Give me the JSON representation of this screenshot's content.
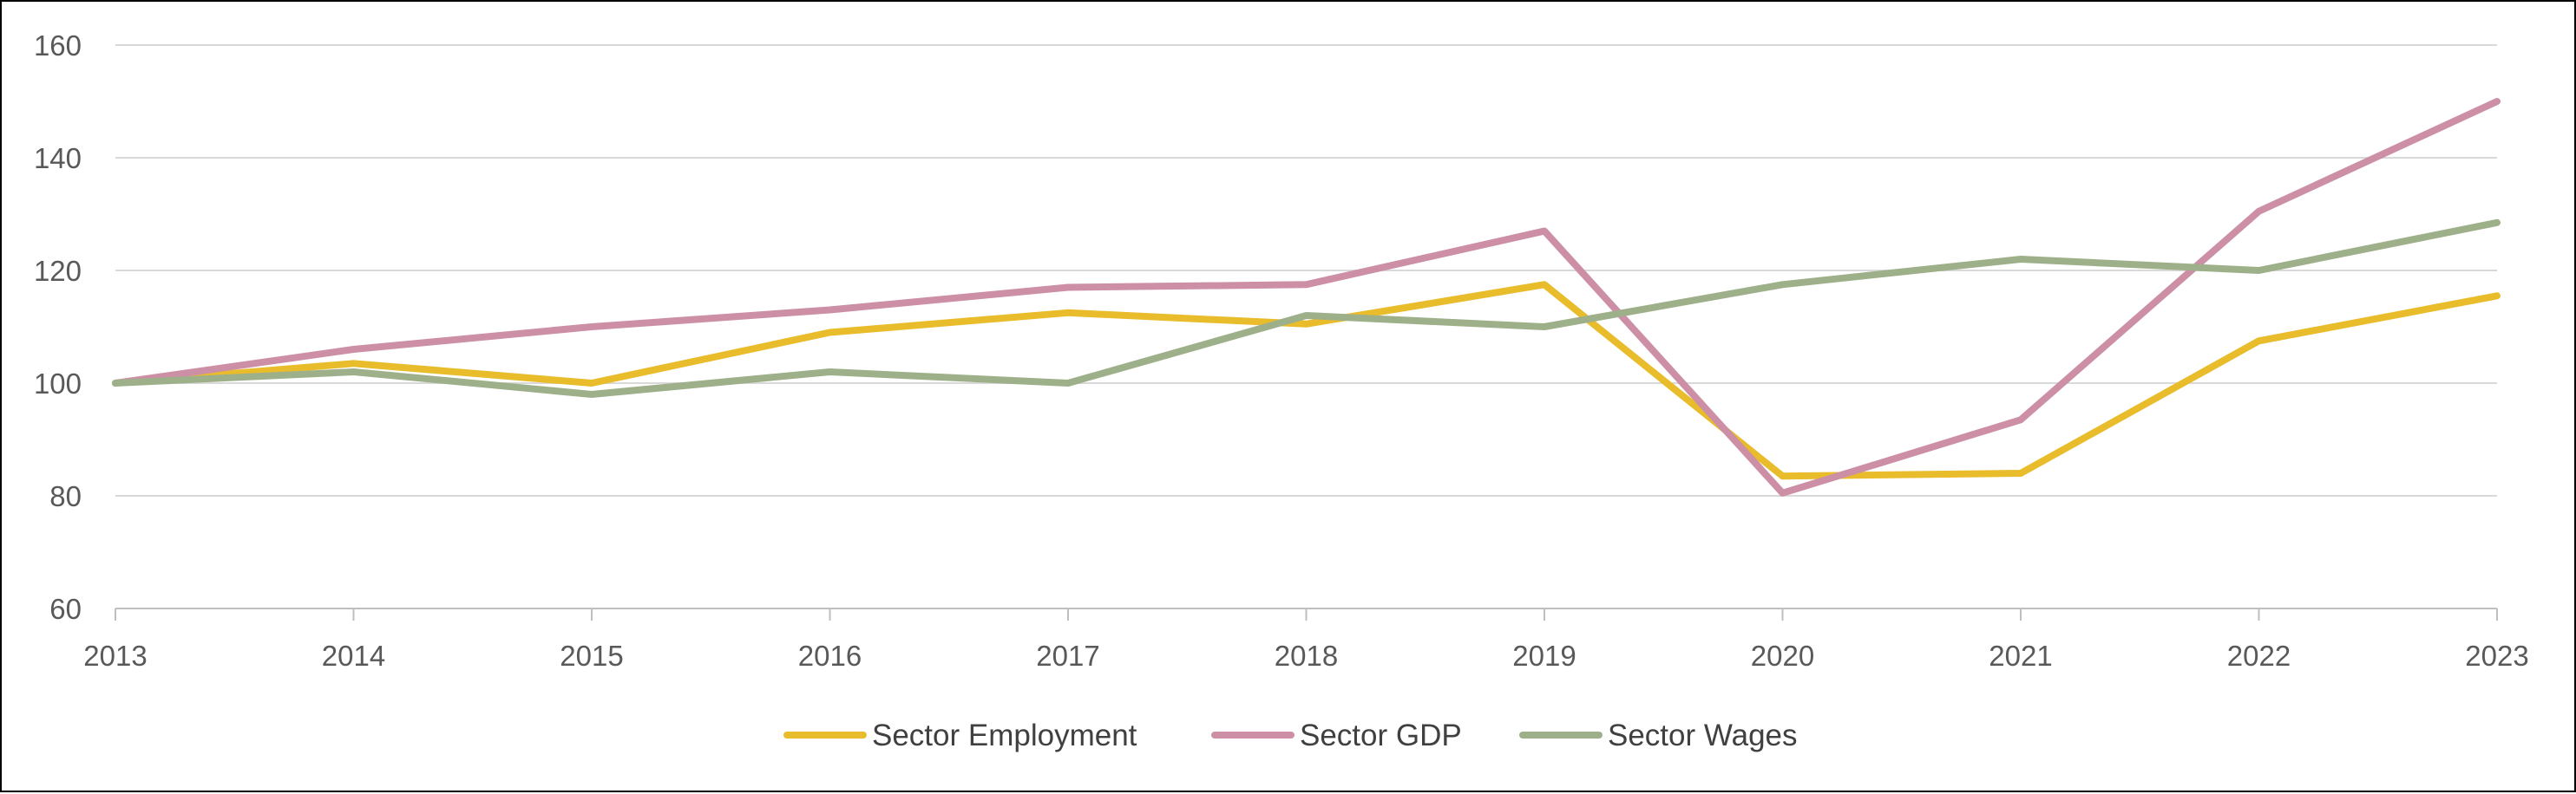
{
  "chart_data": {
    "type": "line",
    "title": "",
    "xlabel": "",
    "ylabel": "",
    "x": [
      "2013",
      "2014",
      "2015",
      "2016",
      "2017",
      "2018",
      "2019",
      "2020",
      "2021",
      "2022",
      "2023"
    ],
    "ylim": [
      60,
      160
    ],
    "yticks": [
      "60",
      "80",
      "100",
      "120",
      "140",
      "160"
    ],
    "grid": true,
    "legend_position": "bottom",
    "series": [
      {
        "name": "Sector Employment",
        "color": "#E8BC2A",
        "values": [
          100,
          103.5,
          100,
          109,
          112.5,
          110.5,
          117.5,
          83.5,
          84,
          107.5,
          115.5
        ]
      },
      {
        "name": "Sector GDP",
        "color": "#CC8FA5",
        "values": [
          100,
          106,
          110,
          113,
          117,
          117.5,
          127,
          80.5,
          93.5,
          130.5,
          150
        ]
      },
      {
        "name": "Sector Wages",
        "color": "#9EB08A",
        "values": [
          100,
          102,
          98,
          102,
          100,
          112,
          110,
          117.5,
          122,
          120,
          128.5
        ]
      }
    ]
  }
}
